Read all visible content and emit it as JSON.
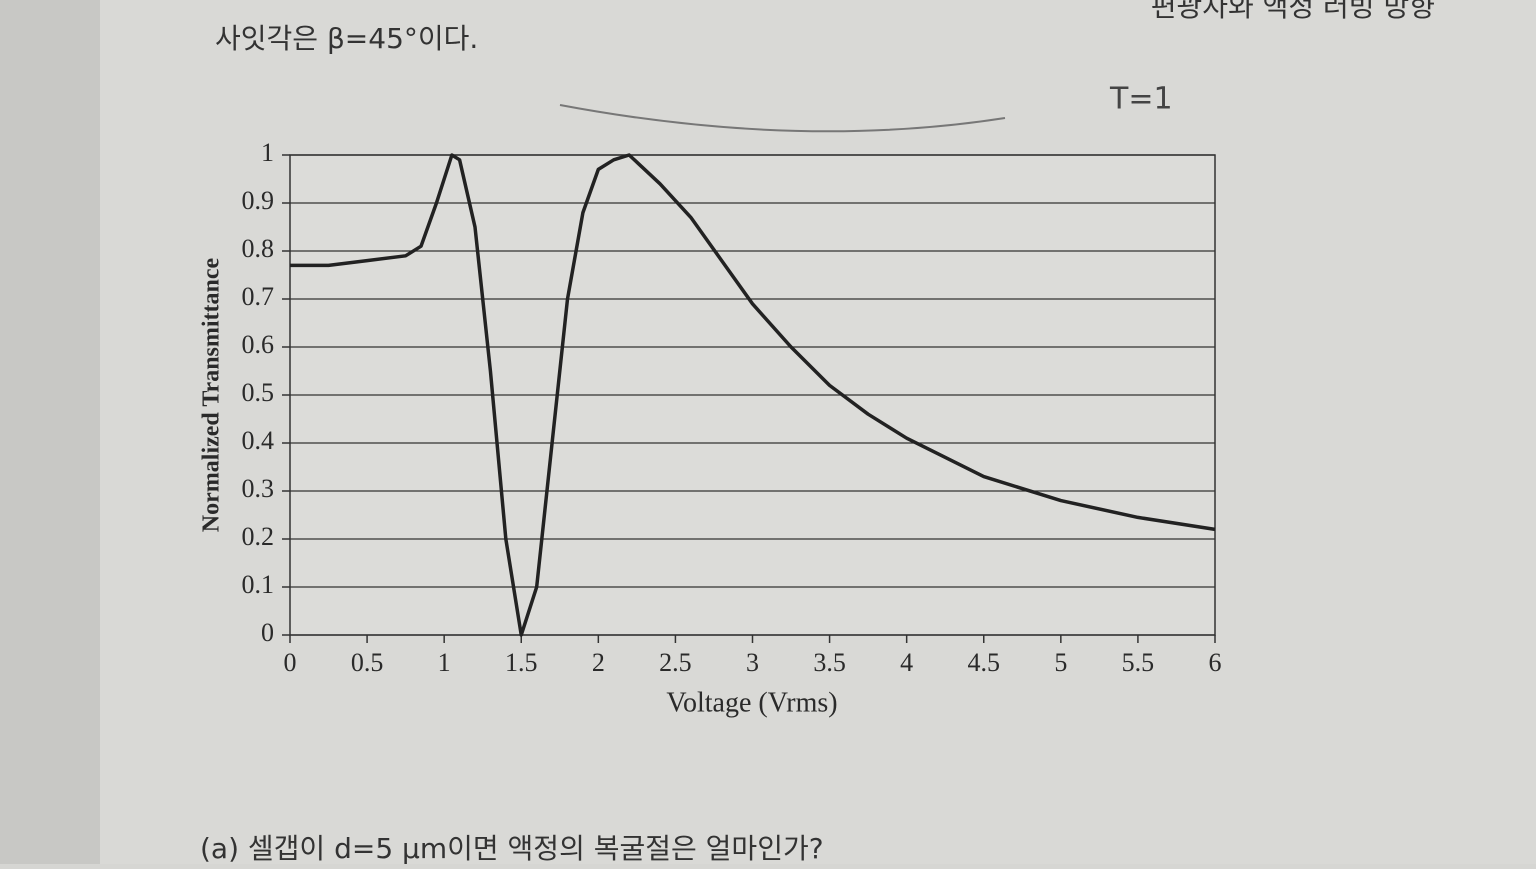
{
  "page_text": {
    "top_left": "사잇각은 β=45°이다.",
    "top_right": "편광자와 액정 러빙 방향",
    "handwriting": "T=1",
    "question": "(a) 셀갭이 d=5 μm이면 액정의 복굴절은 얼마인가?"
  },
  "chart_data": {
    "type": "line",
    "x_label": "Voltage (Vrms)",
    "y_label": "Normalized Transmittance",
    "x": [
      0,
      0.25,
      0.5,
      0.75,
      0.85,
      0.95,
      1.05,
      1.1,
      1.2,
      1.3,
      1.4,
      1.5,
      1.6,
      1.7,
      1.8,
      1.9,
      2.0,
      2.1,
      2.2,
      2.4,
      2.6,
      2.8,
      3.0,
      3.25,
      3.5,
      3.75,
      4.0,
      4.5,
      5.0,
      5.5,
      6.0
    ],
    "series": [
      {
        "color": "#222222",
        "values": [
          0.77,
          0.77,
          0.78,
          0.79,
          0.81,
          0.9,
          1.0,
          0.99,
          0.85,
          0.55,
          0.2,
          0.0,
          0.1,
          0.4,
          0.7,
          0.88,
          0.97,
          0.99,
          1.0,
          0.94,
          0.87,
          0.78,
          0.69,
          0.6,
          0.52,
          0.46,
          0.41,
          0.33,
          0.28,
          0.245,
          0.22
        ]
      }
    ],
    "xlim": [
      0,
      6
    ],
    "xticks": [
      0,
      0.5,
      1,
      1.5,
      2,
      2.5,
      3,
      3.5,
      4,
      4.5,
      5,
      5.5,
      6
    ],
    "ylim": [
      0,
      1
    ],
    "yticks": [
      0,
      0.1,
      0.2,
      0.3,
      0.4,
      0.5,
      0.6,
      0.7,
      0.8,
      0.9,
      1
    ],
    "grid": true
  }
}
